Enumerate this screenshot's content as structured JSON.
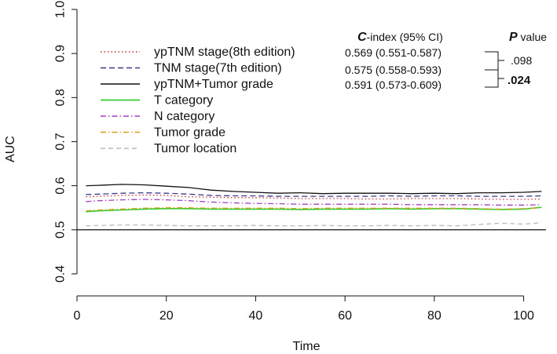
{
  "chart_data": {
    "type": "line",
    "title": "",
    "xlabel": "Time",
    "ylabel": "AUC",
    "xlim": [
      0,
      105
    ],
    "ylim": [
      0.35,
      1.0
    ],
    "xticks": [
      0,
      20,
      40,
      60,
      80,
      100
    ],
    "yticks": [
      0.4,
      0.5,
      0.6,
      0.7,
      0.8,
      0.9,
      1.0
    ],
    "reference_line": 0.5,
    "grid": false,
    "legend_position": "top-left",
    "series": [
      {
        "name": "ypTNM stage(8th edition)",
        "color": "#c0303a",
        "dash": "1.5,3",
        "width": 1.3,
        "points": [
          [
            2,
            0.575
          ],
          [
            5,
            0.576
          ],
          [
            10,
            0.578
          ],
          [
            15,
            0.579
          ],
          [
            20,
            0.578
          ],
          [
            25,
            0.575
          ],
          [
            30,
            0.574
          ],
          [
            35,
            0.573
          ],
          [
            40,
            0.573
          ],
          [
            45,
            0.572
          ],
          [
            50,
            0.571
          ],
          [
            55,
            0.571
          ],
          [
            60,
            0.571
          ],
          [
            65,
            0.57
          ],
          [
            70,
            0.57
          ],
          [
            75,
            0.571
          ],
          [
            80,
            0.571
          ],
          [
            85,
            0.571
          ],
          [
            90,
            0.57
          ],
          [
            95,
            0.569
          ],
          [
            100,
            0.569
          ],
          [
            104,
            0.57
          ]
        ]
      },
      {
        "name": "TNM stage(7th edition)",
        "color": "#3a3a8a",
        "dash": "7,4",
        "width": 1.3,
        "points": [
          [
            2,
            0.58
          ],
          [
            5,
            0.581
          ],
          [
            10,
            0.583
          ],
          [
            15,
            0.584
          ],
          [
            20,
            0.583
          ],
          [
            25,
            0.581
          ],
          [
            30,
            0.578
          ],
          [
            35,
            0.577
          ],
          [
            40,
            0.577
          ],
          [
            45,
            0.576
          ],
          [
            50,
            0.576
          ],
          [
            55,
            0.576
          ],
          [
            60,
            0.576
          ],
          [
            65,
            0.576
          ],
          [
            70,
            0.577
          ],
          [
            75,
            0.576
          ],
          [
            80,
            0.577
          ],
          [
            85,
            0.577
          ],
          [
            90,
            0.576
          ],
          [
            95,
            0.576
          ],
          [
            100,
            0.576
          ],
          [
            104,
            0.577
          ]
        ]
      },
      {
        "name": "ypTNM+Tumor grade",
        "color": "#111111",
        "dash": "",
        "width": 1.3,
        "points": [
          [
            2,
            0.6
          ],
          [
            5,
            0.601
          ],
          [
            10,
            0.603
          ],
          [
            15,
            0.602
          ],
          [
            20,
            0.599
          ],
          [
            25,
            0.596
          ],
          [
            30,
            0.59
          ],
          [
            35,
            0.587
          ],
          [
            40,
            0.585
          ],
          [
            45,
            0.583
          ],
          [
            50,
            0.584
          ],
          [
            55,
            0.582
          ],
          [
            60,
            0.583
          ],
          [
            65,
            0.583
          ],
          [
            70,
            0.583
          ],
          [
            75,
            0.582
          ],
          [
            80,
            0.583
          ],
          [
            85,
            0.582
          ],
          [
            90,
            0.584
          ],
          [
            95,
            0.584
          ],
          [
            100,
            0.585
          ],
          [
            104,
            0.587
          ]
        ]
      },
      {
        "name": "T category",
        "color": "#33cc33",
        "dash": "",
        "width": 1.6,
        "points": [
          [
            2,
            0.541
          ],
          [
            5,
            0.543
          ],
          [
            10,
            0.545
          ],
          [
            15,
            0.547
          ],
          [
            20,
            0.548
          ],
          [
            25,
            0.548
          ],
          [
            30,
            0.547
          ],
          [
            35,
            0.547
          ],
          [
            40,
            0.547
          ],
          [
            45,
            0.547
          ],
          [
            50,
            0.546
          ],
          [
            55,
            0.547
          ],
          [
            60,
            0.547
          ],
          [
            65,
            0.547
          ],
          [
            70,
            0.548
          ],
          [
            75,
            0.547
          ],
          [
            80,
            0.548
          ],
          [
            85,
            0.548
          ],
          [
            90,
            0.547
          ],
          [
            95,
            0.546
          ],
          [
            100,
            0.547
          ],
          [
            104,
            0.551
          ]
        ]
      },
      {
        "name": "N category",
        "color": "#a040c0",
        "dash": "7,3,1.5,3",
        "width": 1.3,
        "points": [
          [
            2,
            0.564
          ],
          [
            5,
            0.566
          ],
          [
            10,
            0.568
          ],
          [
            15,
            0.569
          ],
          [
            20,
            0.568
          ],
          [
            25,
            0.566
          ],
          [
            30,
            0.563
          ],
          [
            35,
            0.561
          ],
          [
            40,
            0.56
          ],
          [
            45,
            0.559
          ],
          [
            50,
            0.558
          ],
          [
            55,
            0.558
          ],
          [
            60,
            0.558
          ],
          [
            65,
            0.558
          ],
          [
            70,
            0.558
          ],
          [
            75,
            0.557
          ],
          [
            80,
            0.557
          ],
          [
            85,
            0.557
          ],
          [
            90,
            0.557
          ],
          [
            95,
            0.556
          ],
          [
            100,
            0.556
          ],
          [
            104,
            0.557
          ]
        ]
      },
      {
        "name": "Tumor grade",
        "color": "#d4a017",
        "dash": "7,3,1.5,3",
        "width": 1.3,
        "points": [
          [
            2,
            0.543
          ],
          [
            5,
            0.545
          ],
          [
            10,
            0.547
          ],
          [
            15,
            0.549
          ],
          [
            20,
            0.55
          ],
          [
            25,
            0.55
          ],
          [
            30,
            0.549
          ],
          [
            35,
            0.549
          ],
          [
            40,
            0.549
          ],
          [
            45,
            0.549
          ],
          [
            50,
            0.548
          ],
          [
            55,
            0.549
          ],
          [
            60,
            0.549
          ],
          [
            65,
            0.549
          ],
          [
            70,
            0.549
          ],
          [
            75,
            0.549
          ],
          [
            80,
            0.549
          ],
          [
            85,
            0.549
          ],
          [
            90,
            0.548
          ],
          [
            95,
            0.547
          ],
          [
            100,
            0.548
          ],
          [
            104,
            0.55
          ]
        ]
      },
      {
        "name": "Tumor location",
        "color": "#bbbbbb",
        "dash": "6,4",
        "width": 1.3,
        "points": [
          [
            2,
            0.509
          ],
          [
            5,
            0.51
          ],
          [
            10,
            0.511
          ],
          [
            15,
            0.511
          ],
          [
            20,
            0.51
          ],
          [
            25,
            0.509
          ],
          [
            30,
            0.509
          ],
          [
            35,
            0.509
          ],
          [
            40,
            0.51
          ],
          [
            45,
            0.509
          ],
          [
            50,
            0.509
          ],
          [
            55,
            0.51
          ],
          [
            60,
            0.509
          ],
          [
            65,
            0.509
          ],
          [
            70,
            0.51
          ],
          [
            75,
            0.509
          ],
          [
            80,
            0.51
          ],
          [
            85,
            0.509
          ],
          [
            90,
            0.512
          ],
          [
            95,
            0.515
          ],
          [
            100,
            0.513
          ],
          [
            104,
            0.516
          ]
        ]
      }
    ],
    "annotation_table": {
      "header_c_letter": "C",
      "header_c_rest": "-index (95% CI)",
      "header_p_letter": "P",
      "header_p_rest": " value",
      "c_index_rows": [
        "0.569 (0.551-0.587)",
        "0.575 (0.558-0.593)",
        "0.591 (0.573-0.609)"
      ],
      "p_values": [
        ".098",
        ".024"
      ]
    }
  }
}
